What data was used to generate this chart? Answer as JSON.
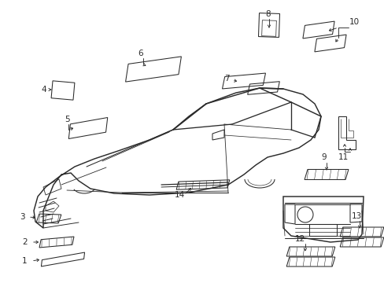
{
  "bg_color": "#ffffff",
  "line_color": "#2a2a2a",
  "lw": 0.75,
  "fig_width": 4.89,
  "fig_height": 3.6,
  "dpi": 100,
  "label_fontsize": 7.5
}
